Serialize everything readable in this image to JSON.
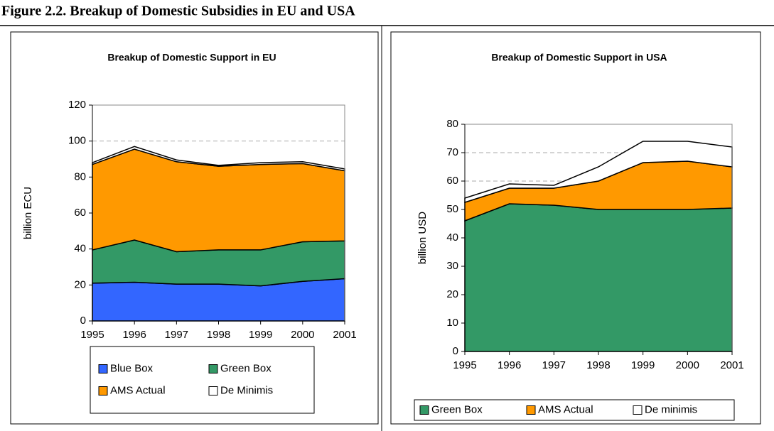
{
  "title": "Figure 2.2. Breakup of Domestic Subsidies in EU and USA",
  "chart_data": [
    {
      "type": "stacked-area",
      "title": "Breakup of Domestic Support in EU",
      "y_label": "billion ECU",
      "categories": [
        "1995",
        "1996",
        "1997",
        "1998",
        "1999",
        "2000",
        "2001"
      ],
      "series": [
        {
          "name": "Blue Box",
          "color": "#3366ff",
          "values": [
            21,
            21.5,
            20.5,
            20.5,
            19.5,
            22,
            23.5
          ]
        },
        {
          "name": "Green Box",
          "color": "#339966",
          "values": [
            18.5,
            23.5,
            18,
            19,
            20,
            22,
            21
          ]
        },
        {
          "name": "AMS Actual",
          "color": "#ff9900",
          "values": [
            47.5,
            50.5,
            50,
            46.5,
            47.5,
            43.5,
            39
          ]
        },
        {
          "name": "De Minimis",
          "color": "#ffffff",
          "values": [
            1,
            1.5,
            1,
            0.5,
            1,
            1,
            1
          ]
        }
      ],
      "ylim": [
        0,
        120
      ],
      "yticks": [
        0,
        20,
        40,
        60,
        80,
        100,
        120
      ],
      "grid": true
    },
    {
      "type": "stacked-area",
      "title": "Breakup of Domestic Support in USA",
      "y_label": "billion USD",
      "categories": [
        "1995",
        "1996",
        "1997",
        "1998",
        "1999",
        "2000",
        "2001"
      ],
      "series": [
        {
          "name": "Green Box",
          "color": "#339966",
          "values": [
            46,
            52,
            51.5,
            50,
            50,
            50,
            50.5
          ]
        },
        {
          "name": "AMS Actual",
          "color": "#ff9900",
          "values": [
            6.5,
            5.5,
            6,
            10,
            16.5,
            17,
            14.5
          ]
        },
        {
          "name": "De minimis",
          "color": "#ffffff",
          "values": [
            1.5,
            1.5,
            1,
            5,
            7.5,
            7,
            7
          ]
        }
      ],
      "ylim": [
        0,
        80
      ],
      "yticks": [
        0,
        10,
        20,
        30,
        40,
        50,
        60,
        70,
        80
      ],
      "grid": true
    }
  ]
}
